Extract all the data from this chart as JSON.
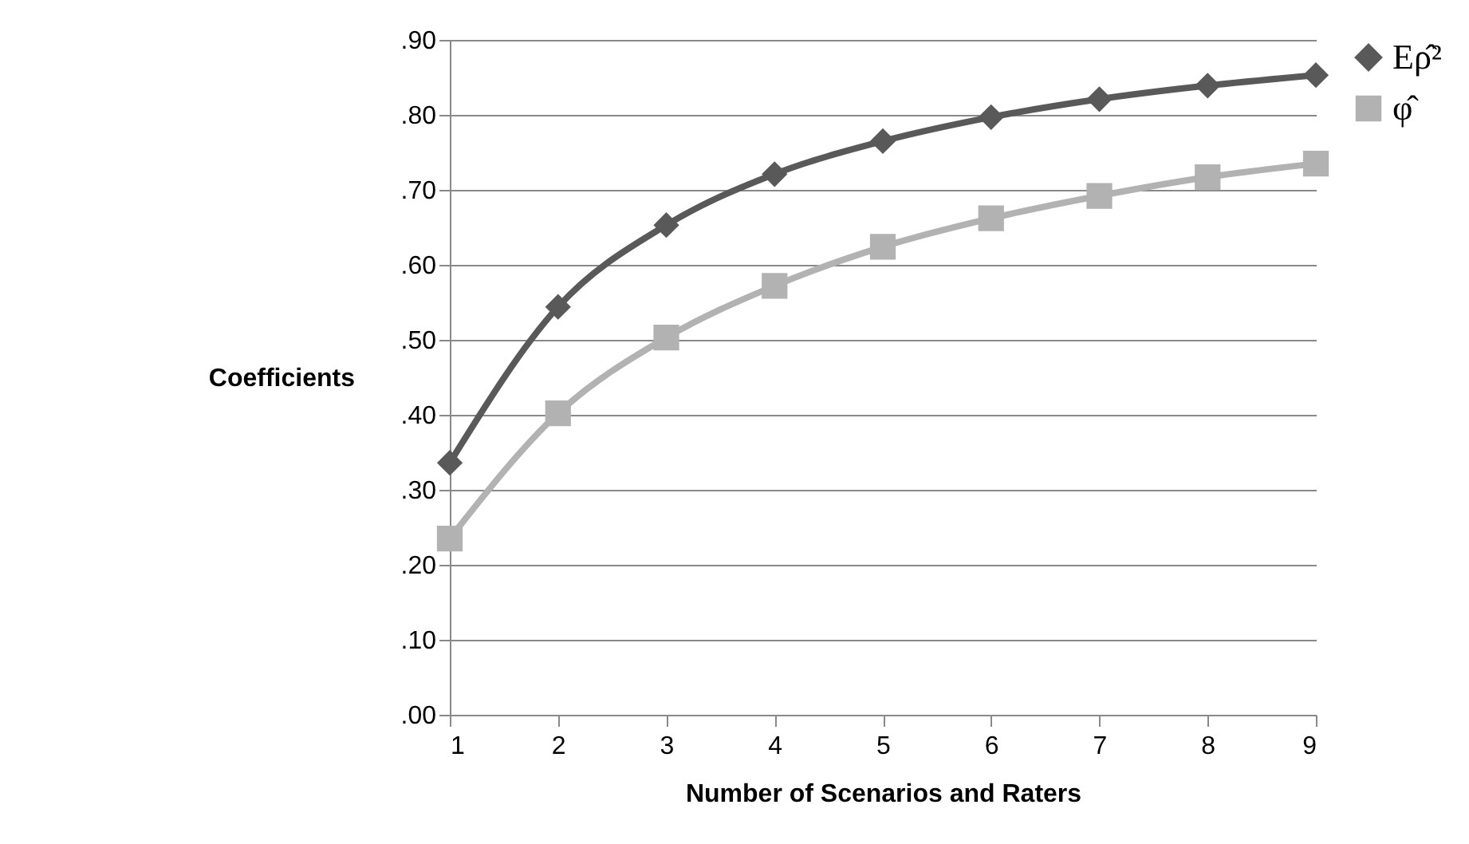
{
  "chart_data": {
    "type": "line",
    "xlabel": "Number of Scenarios and Raters",
    "ylabel": "Coefficients",
    "x": [
      1,
      2,
      3,
      4,
      5,
      6,
      7,
      8,
      9
    ],
    "series": [
      {
        "name": "Eρ̂²",
        "color": "#595959",
        "marker": "diamond",
        "values": [
          0.336,
          0.544,
          0.653,
          0.721,
          0.765,
          0.797,
          0.821,
          0.839,
          0.853
        ]
      },
      {
        "name": "φ̂",
        "color": "#b2b2b2",
        "marker": "square",
        "values": [
          0.235,
          0.402,
          0.503,
          0.572,
          0.624,
          0.662,
          0.692,
          0.717,
          0.735
        ]
      }
    ],
    "xlim": [
      1,
      9
    ],
    "xticks": [
      1,
      2,
      3,
      4,
      5,
      6,
      7,
      8,
      9
    ],
    "ylim": [
      0,
      0.9
    ],
    "yticks": [
      {
        "value": 0,
        "label": ".00"
      },
      {
        "value": 0.1,
        "label": ".10"
      },
      {
        "value": 0.2,
        "label": ".20"
      },
      {
        "value": 0.3,
        "label": ".30"
      },
      {
        "value": 0.4,
        "label": ".40"
      },
      {
        "value": 0.5,
        "label": ".50"
      },
      {
        "value": 0.6,
        "label": ".60"
      },
      {
        "value": 0.7,
        "label": ".70"
      },
      {
        "value": 0.8,
        "label": ".80"
      },
      {
        "value": 0.9,
        "label": ".90"
      }
    ],
    "grid": "y",
    "legend": "right",
    "line_style": "solid"
  }
}
